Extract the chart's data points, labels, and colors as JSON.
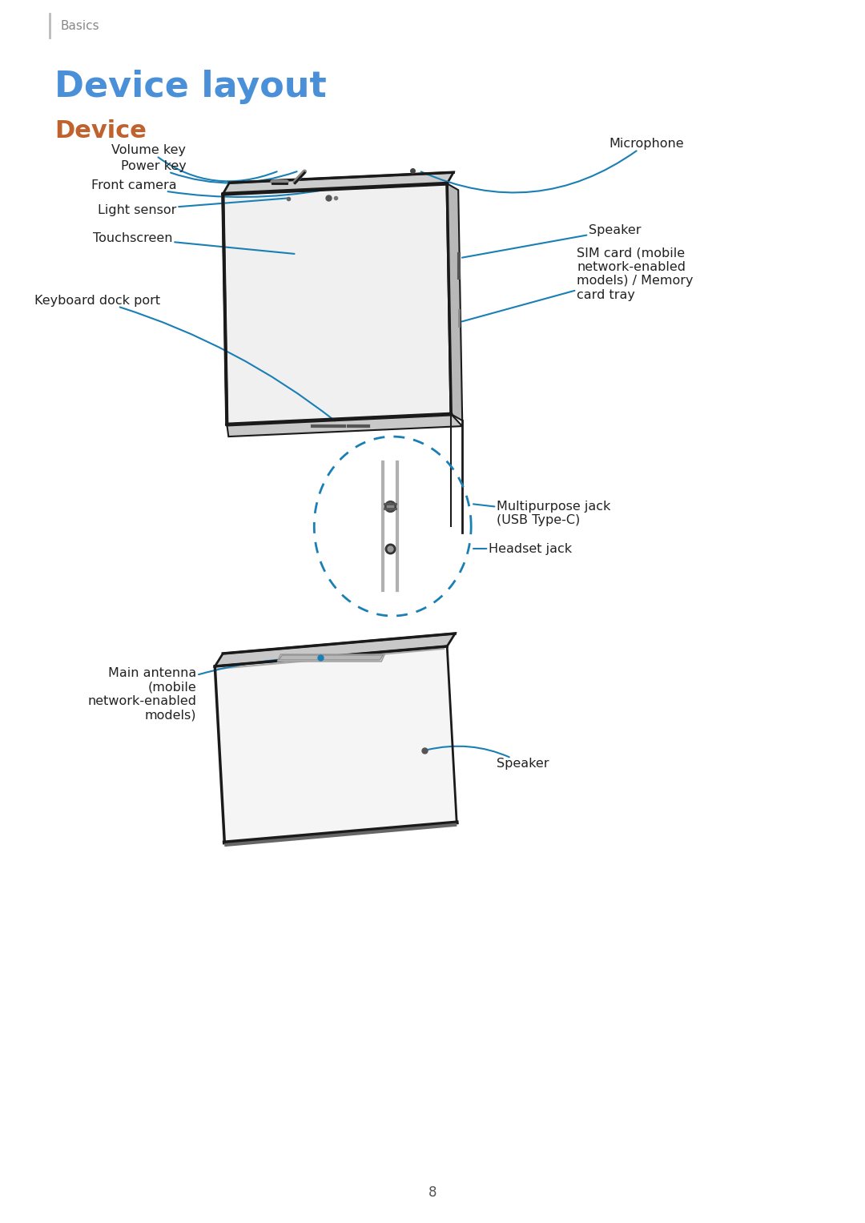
{
  "page_title": "Device layout",
  "section_title": "Device",
  "breadcrumb": "Basics",
  "page_number": "8",
  "title_color": "#4a90d9",
  "section_color": "#c0622e",
  "breadcrumb_color": "#888888",
  "text_color": "#222222",
  "line_color": "#1a7fb5",
  "device_line_color": "#1a1a1a",
  "bg_color": "#ffffff"
}
